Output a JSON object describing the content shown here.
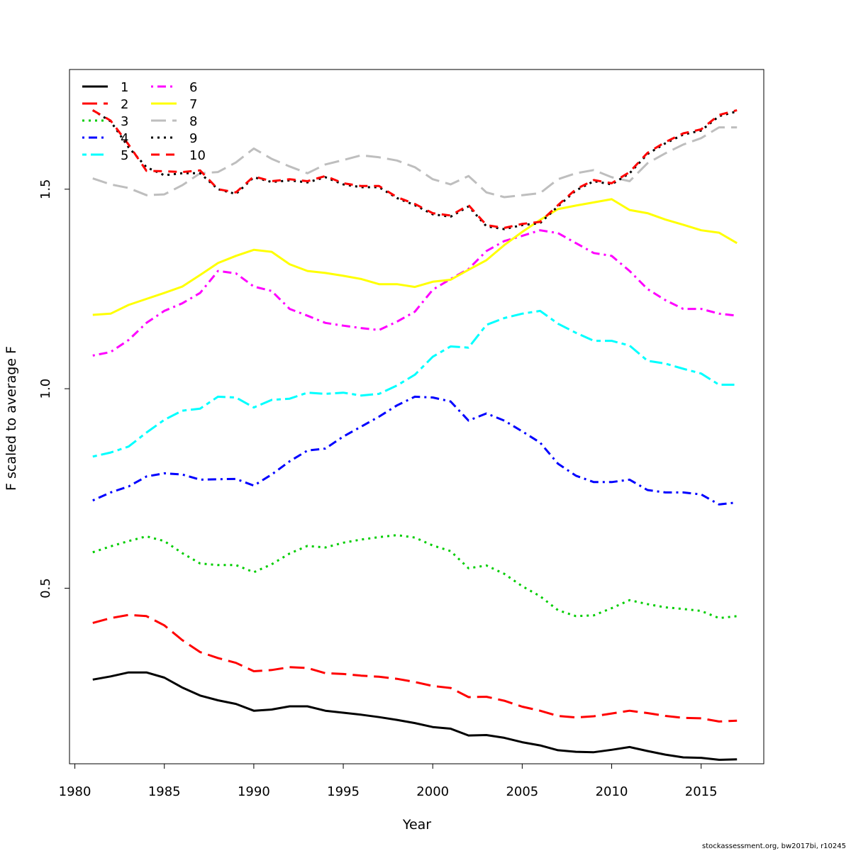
{
  "chart_data": {
    "type": "line",
    "title": "",
    "xlabel": "Year",
    "ylabel": "F scaled to average F",
    "xlim": [
      1979.7,
      2018.5
    ],
    "ylim": [
      0.06,
      1.8
    ],
    "x_ticks": [
      1980,
      1985,
      1990,
      1995,
      2000,
      2005,
      2010,
      2015
    ],
    "x_tick_labels": [
      "1980",
      "1985",
      "1990",
      "1995",
      "2000",
      "2005",
      "2010",
      "2015"
    ],
    "y_ticks": [
      0.5,
      1.0,
      1.5
    ],
    "y_tick_labels": [
      "0.5",
      "1.0",
      "1.5"
    ],
    "grid": false,
    "legend_position": "top-left",
    "credit": "stockassessment.org, bw2017bi, r10245",
    "x": [
      1981,
      1982,
      1983,
      1984,
      1985,
      1986,
      1987,
      1988,
      1989,
      1990,
      1991,
      1992,
      1993,
      1994,
      1995,
      1996,
      1997,
      1998,
      1999,
      2000,
      2001,
      2002,
      2003,
      2004,
      2005,
      2006,
      2007,
      2008,
      2009,
      2010,
      2011,
      2012,
      2013,
      2014,
      2015,
      2016,
      2017
    ],
    "series": [
      {
        "name": "1",
        "color": "#000000",
        "dash": "solid",
        "values": [
          0.271,
          0.279,
          0.289,
          0.289,
          0.276,
          0.251,
          0.231,
          0.219,
          0.21,
          0.193,
          0.196,
          0.204,
          0.204,
          0.193,
          0.188,
          0.183,
          0.177,
          0.17,
          0.162,
          0.152,
          0.148,
          0.131,
          0.132,
          0.125,
          0.114,
          0.106,
          0.094,
          0.09,
          0.089,
          0.095,
          0.102,
          0.092,
          0.083,
          0.076,
          0.075,
          0.07,
          0.071
        ]
      },
      {
        "name": "2",
        "color": "#ff0000",
        "dash": "longdash",
        "values": [
          0.413,
          0.425,
          0.433,
          0.43,
          0.407,
          0.37,
          0.34,
          0.325,
          0.313,
          0.292,
          0.295,
          0.302,
          0.3,
          0.287,
          0.285,
          0.281,
          0.278,
          0.273,
          0.265,
          0.255,
          0.25,
          0.227,
          0.228,
          0.218,
          0.203,
          0.193,
          0.18,
          0.176,
          0.179,
          0.186,
          0.193,
          0.187,
          0.18,
          0.175,
          0.174,
          0.166,
          0.168
        ]
      },
      {
        "name": "3",
        "color": "#00cd00",
        "dash": "dotted",
        "values": [
          0.59,
          0.605,
          0.618,
          0.63,
          0.618,
          0.588,
          0.562,
          0.558,
          0.558,
          0.54,
          0.56,
          0.587,
          0.606,
          0.602,
          0.614,
          0.622,
          0.628,
          0.633,
          0.627,
          0.607,
          0.593,
          0.55,
          0.557,
          0.536,
          0.505,
          0.48,
          0.445,
          0.43,
          0.432,
          0.45,
          0.47,
          0.46,
          0.452,
          0.448,
          0.443,
          0.425,
          0.43
        ]
      },
      {
        "name": "4",
        "color": "#0000ff",
        "dash": "dotdash",
        "values": [
          0.72,
          0.74,
          0.755,
          0.78,
          0.788,
          0.785,
          0.772,
          0.773,
          0.774,
          0.757,
          0.785,
          0.818,
          0.845,
          0.85,
          0.88,
          0.905,
          0.93,
          0.958,
          0.98,
          0.978,
          0.968,
          0.92,
          0.938,
          0.92,
          0.893,
          0.865,
          0.812,
          0.782,
          0.766,
          0.766,
          0.772,
          0.746,
          0.74,
          0.74,
          0.735,
          0.71,
          0.715
        ]
      },
      {
        "name": "5",
        "color": "#00ffff",
        "dash": "twodash",
        "values": [
          0.83,
          0.84,
          0.855,
          0.89,
          0.922,
          0.945,
          0.95,
          0.98,
          0.978,
          0.953,
          0.972,
          0.975,
          0.99,
          0.987,
          0.99,
          0.983,
          0.987,
          1.008,
          1.035,
          1.08,
          1.106,
          1.103,
          1.16,
          1.177,
          1.188,
          1.195,
          1.163,
          1.14,
          1.12,
          1.12,
          1.108,
          1.07,
          1.063,
          1.05,
          1.038,
          1.01,
          1.01
        ]
      },
      {
        "name": "6",
        "color": "#ff00ff",
        "dash": "dotdash",
        "values": [
          1.083,
          1.092,
          1.122,
          1.165,
          1.195,
          1.214,
          1.24,
          1.295,
          1.289,
          1.256,
          1.245,
          1.2,
          1.183,
          1.165,
          1.158,
          1.152,
          1.147,
          1.168,
          1.193,
          1.248,
          1.275,
          1.3,
          1.345,
          1.37,
          1.383,
          1.397,
          1.39,
          1.365,
          1.34,
          1.333,
          1.295,
          1.25,
          1.222,
          1.2,
          1.2,
          1.188,
          1.183
        ]
      },
      {
        "name": "7",
        "color": "#ffff00",
        "dash": "solid",
        "values": [
          1.185,
          1.188,
          1.21,
          1.225,
          1.24,
          1.256,
          1.285,
          1.315,
          1.333,
          1.348,
          1.343,
          1.312,
          1.295,
          1.29,
          1.283,
          1.275,
          1.262,
          1.262,
          1.255,
          1.268,
          1.273,
          1.298,
          1.322,
          1.36,
          1.393,
          1.423,
          1.45,
          1.459,
          1.467,
          1.475,
          1.448,
          1.44,
          1.424,
          1.411,
          1.397,
          1.391,
          1.365
        ]
      },
      {
        "name": "8",
        "color": "#bebebe",
        "dash": "longdash",
        "values": [
          1.527,
          1.512,
          1.503,
          1.485,
          1.487,
          1.51,
          1.54,
          1.543,
          1.567,
          1.602,
          1.576,
          1.557,
          1.54,
          1.562,
          1.573,
          1.585,
          1.58,
          1.572,
          1.555,
          1.525,
          1.512,
          1.533,
          1.492,
          1.48,
          1.485,
          1.49,
          1.525,
          1.54,
          1.548,
          1.53,
          1.52,
          1.565,
          1.59,
          1.612,
          1.628,
          1.655,
          1.655
        ]
      },
      {
        "name": "9",
        "color": "#000000",
        "dash": "dotted",
        "values": [
          1.698,
          1.67,
          1.605,
          1.555,
          1.535,
          1.54,
          1.54,
          1.5,
          1.488,
          1.53,
          1.518,
          1.522,
          1.517,
          1.53,
          1.512,
          1.505,
          1.505,
          1.478,
          1.46,
          1.437,
          1.431,
          1.457,
          1.407,
          1.4,
          1.41,
          1.415,
          1.457,
          1.497,
          1.52,
          1.512,
          1.54,
          1.588,
          1.615,
          1.637,
          1.647,
          1.683,
          1.695
        ]
      },
      {
        "name": "10",
        "color": "#ff0000",
        "dash": "dashed",
        "values": [
          1.698,
          1.672,
          1.612,
          1.546,
          1.545,
          1.543,
          1.547,
          1.5,
          1.492,
          1.532,
          1.52,
          1.525,
          1.52,
          1.533,
          1.515,
          1.508,
          1.508,
          1.48,
          1.463,
          1.44,
          1.434,
          1.46,
          1.41,
          1.403,
          1.413,
          1.418,
          1.46,
          1.5,
          1.523,
          1.515,
          1.543,
          1.591,
          1.618,
          1.64,
          1.65,
          1.686,
          1.698
        ]
      }
    ]
  }
}
